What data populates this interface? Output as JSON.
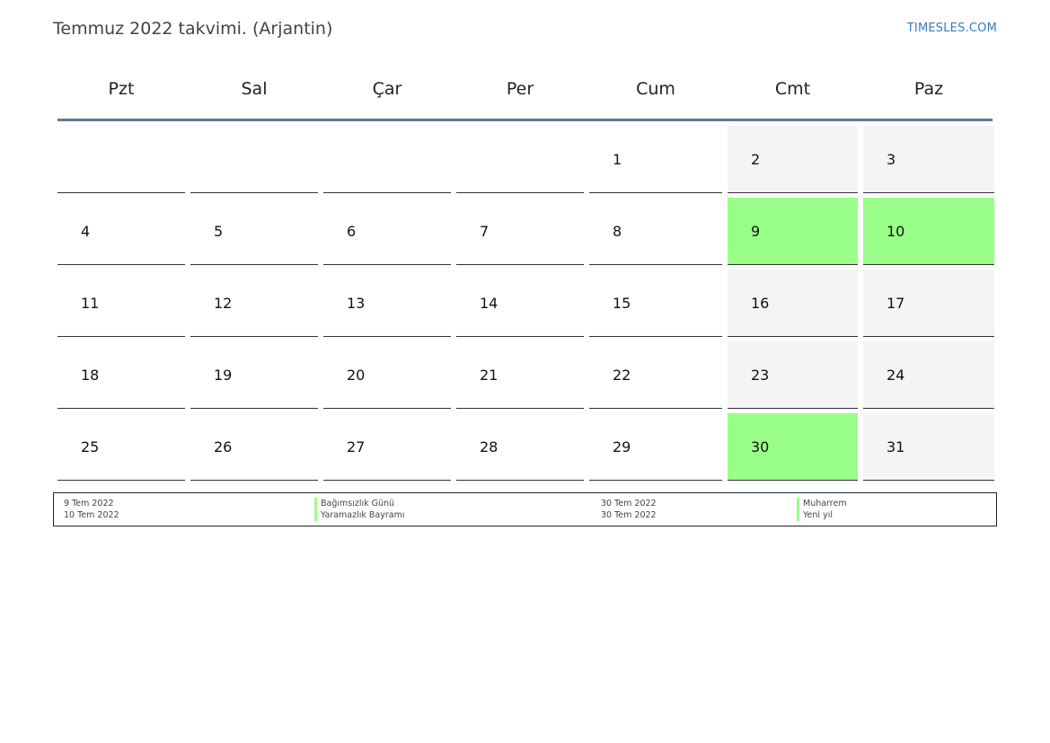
{
  "header": {
    "title": "Temmuz 2022 takvimi. (Arjantin)",
    "site": "TIMESLES.COM"
  },
  "colors": {
    "holiday": "#99ff88",
    "weekend": "#f4f4f4",
    "header_rule": "#5b7a9e",
    "link": "#3a7ab8"
  },
  "weekdays": [
    "Pzt",
    "Sal",
    "Çar",
    "Per",
    "Cum",
    "Cmt",
    "Paz"
  ],
  "weeks": [
    [
      "",
      "",
      "",
      "",
      "1",
      "2",
      "3"
    ],
    [
      "4",
      "5",
      "6",
      "7",
      "8",
      "9",
      "10"
    ],
    [
      "11",
      "12",
      "13",
      "14",
      "15",
      "16",
      "17"
    ],
    [
      "18",
      "19",
      "20",
      "21",
      "22",
      "23",
      "24"
    ],
    [
      "25",
      "26",
      "27",
      "28",
      "29",
      "30",
      "31"
    ]
  ],
  "holidays": [
    "9",
    "10",
    "30"
  ],
  "legend": [
    {
      "date": "9 Tem 2022",
      "name": "Bağımsızlık Günü"
    },
    {
      "date": "10 Tem 2022",
      "name": "Yaramazlık Bayramı"
    },
    {
      "date": "30 Tem 2022",
      "name": "Muharrem"
    },
    {
      "date": "30 Tem 2022",
      "name": "Yeni yıl"
    }
  ]
}
